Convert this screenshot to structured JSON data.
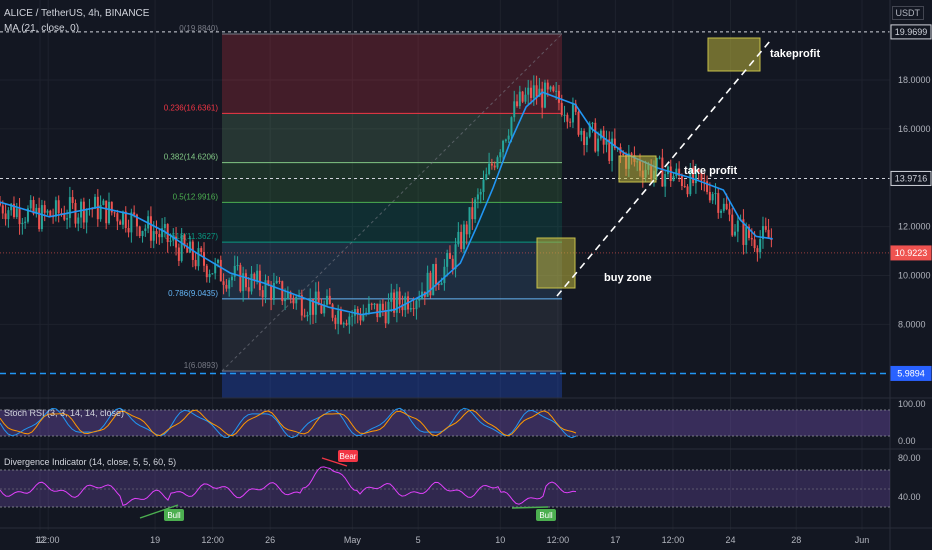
{
  "header": {
    "symbol": "ALICE / TetherUS, 4h, BINANCE",
    "ma": "MA (21, close, 0)",
    "currency": "USDT"
  },
  "chart_data": {
    "type": "candlestick",
    "price_ticks": [
      {
        "label": "18.0000",
        "value": 18
      },
      {
        "label": "16.0000",
        "value": 16
      },
      {
        "label": "12.0000",
        "value": 12
      },
      {
        "label": "10.0000",
        "value": 10
      },
      {
        "label": "8.0000",
        "value": 8
      }
    ],
    "price_badges": [
      {
        "label": "19.9699",
        "value": 19.9699,
        "color": "#131722",
        "text": "#d1d4dc",
        "border": "#d1d4dc"
      },
      {
        "label": "13.9716",
        "value": 13.9716,
        "color": "#131722",
        "text": "#d1d4dc",
        "border": "#d1d4dc"
      },
      {
        "label": "10.9223",
        "value": 10.9223,
        "color": "#ef5350",
        "text": "#ffffff",
        "border": "#ef5350"
      },
      {
        "label": "5.9894",
        "value": 5.9894,
        "color": "#2962ff",
        "text": "#ffffff",
        "border": "#2962ff"
      }
    ],
    "fib_levels": [
      {
        "label": "0(19.8840)",
        "value": 19.884,
        "color": "#787b86"
      },
      {
        "label": "0.236(16.6361)",
        "value": 16.6361,
        "color": "#f23645"
      },
      {
        "label": "0.382(14.6206)",
        "value": 14.6206,
        "color": "#81c784"
      },
      {
        "label": "0.5(12.9916)",
        "value": 12.9916,
        "color": "#4caf50"
      },
      {
        "label": "0.618(11.3627)",
        "value": 11.3627,
        "color": "#089981"
      },
      {
        "label": "0.786(9.0435)",
        "value": 9.0435,
        "color": "#64b5f6"
      },
      {
        "label": "1(6.0893)",
        "value": 6.0893,
        "color": "#787b86"
      }
    ],
    "time_ticks": [
      {
        "label": "12",
        "value": 12
      },
      {
        "label": "12:00",
        "value": 12.5
      },
      {
        "label": "19",
        "value": 19
      },
      {
        "label": "12:00",
        "value": 22.5
      },
      {
        "label": "26",
        "value": 26
      },
      {
        "label": "May",
        "value": 31
      },
      {
        "label": "5",
        "value": 35
      },
      {
        "label": "10",
        "value": 40
      },
      {
        "label": "12:00",
        "value": 43.5
      },
      {
        "label": "17",
        "value": 47
      },
      {
        "label": "12:00",
        "value": 50.5
      },
      {
        "label": "24",
        "value": 54
      },
      {
        "label": "28",
        "value": 58
      },
      {
        "label": "Jun",
        "value": 62
      }
    ],
    "ma_path": [
      [
        0,
        13.0
      ],
      [
        3,
        12.4
      ],
      [
        6,
        12.8
      ],
      [
        8,
        12.5
      ],
      [
        10,
        11.8
      ],
      [
        12,
        10.9
      ],
      [
        14,
        10.1
      ],
      [
        16,
        9.7
      ],
      [
        18,
        9.2
      ],
      [
        20,
        8.7
      ],
      [
        22,
        8.4
      ],
      [
        24,
        8.6
      ],
      [
        26,
        9.3
      ],
      [
        28,
        10.5
      ],
      [
        29,
        12.0
      ],
      [
        30,
        13.6
      ],
      [
        31,
        15.4
      ],
      [
        32,
        16.9
      ],
      [
        33,
        17.5
      ],
      [
        35,
        17.0
      ],
      [
        36,
        16.0
      ],
      [
        38,
        15.0
      ],
      [
        40,
        14.4
      ],
      [
        42,
        14.0
      ],
      [
        44,
        13.5
      ],
      [
        45,
        12.3
      ],
      [
        46,
        11.6
      ],
      [
        47,
        11.5
      ]
    ],
    "annotations": [
      {
        "label": "takeprofit",
        "color": "#ffffff"
      },
      {
        "label": "take profit",
        "color": "#ffffff"
      },
      {
        "label": "buy zone",
        "color": "#ffffff"
      }
    ],
    "indicators": [
      {
        "name": "Stoch RSI (3, 3, 14, 14, close)",
        "ticks": [
          {
            "label": "100.00",
            "value": 100
          },
          {
            "label": "0.00",
            "value": 0
          }
        ]
      },
      {
        "name": "Divergence Indicator (14, close, 5, 5, 60, 5)",
        "ticks": [
          {
            "label": "80.00",
            "value": 80
          },
          {
            "label": "40.00",
            "value": 40
          }
        ],
        "signals": [
          {
            "label": "Bear",
            "color": "#f23645"
          },
          {
            "label": "Bull",
            "color": "#4caf50"
          },
          {
            "label": "Bull",
            "color": "#4caf50"
          }
        ]
      }
    ]
  }
}
